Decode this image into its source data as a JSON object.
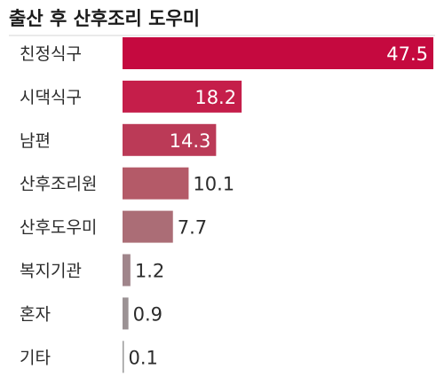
{
  "chart_data": {
    "type": "bar",
    "orientation": "horizontal",
    "title": "출산 후 산후조리 도우미",
    "categories": [
      "친정식구",
      "시댁식구",
      "남편",
      "산후조리원",
      "산후도우미",
      "복지기관",
      "혼자",
      "기타"
    ],
    "values": [
      47.5,
      18.2,
      14.3,
      10.1,
      7.7,
      1.2,
      0.9,
      0.1
    ],
    "value_labels": [
      "47.5",
      "18.2",
      "14.3",
      "10.1",
      "7.7",
      "1.2",
      "0.9",
      "0.1"
    ],
    "xlim": [
      0,
      47.5
    ],
    "grid": false,
    "legend": "none",
    "bar_colors": [
      "#c5093f",
      "#c51e4a",
      "#bb3a57",
      "#b45a68",
      "#ab6d76",
      "#a0858b",
      "#9b9294",
      "#9a9a9a"
    ]
  }
}
